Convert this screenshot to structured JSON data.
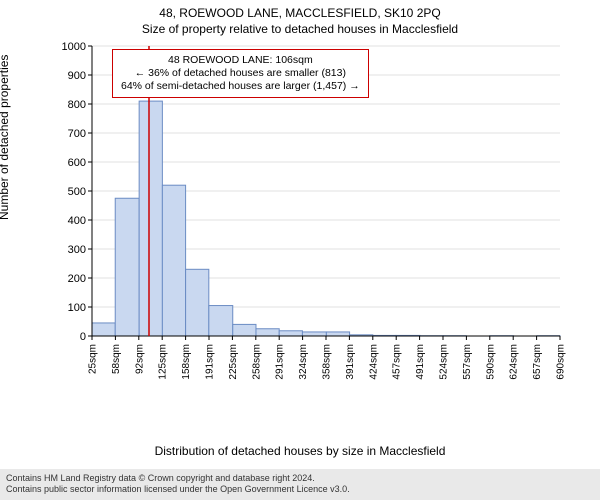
{
  "header_title": "48, ROEWOOD LANE, MACCLESFIELD, SK10 2PQ",
  "subtitle": "Size of property relative to detached houses in Macclesfield",
  "y_axis_label": "Number of detached properties",
  "x_axis_label": "Distribution of detached houses by size in Macclesfield",
  "info_box": {
    "line1": "48 ROEWOOD LANE: 106sqm",
    "line2": "← 36% of detached houses are smaller (813)",
    "line3": "64% of semi-detached houses are larger (1,457) →"
  },
  "footer": {
    "line1": "Contains HM Land Registry data © Crown copyright and database right 2024.",
    "line2": "Contains public sector information licensed under the Open Government Licence v3.0."
  },
  "chart": {
    "type": "histogram",
    "background_color": "#ffffff",
    "bar_fill": "#c9d8f0",
    "bar_stroke": "#6b8cc4",
    "axis_color": "#000000",
    "grid_color": "#e0e0e0",
    "reference_line_color": "#cc0000",
    "reference_x_value": 106,
    "ylim": [
      0,
      1000
    ],
    "ytick_step": 100,
    "title_fontsize": 12,
    "label_fontsize": 12,
    "tick_fontsize": 10,
    "x_tick_labels": [
      "25sqm",
      "58sqm",
      "92sqm",
      "125sqm",
      "158sqm",
      "191sqm",
      "225sqm",
      "258sqm",
      "291sqm",
      "324sqm",
      "358sqm",
      "391sqm",
      "424sqm",
      "457sqm",
      "491sqm",
      "524sqm",
      "557sqm",
      "590sqm",
      "624sqm",
      "657sqm",
      "690sqm"
    ],
    "bins": [
      {
        "x_start": 25,
        "x_end": 58,
        "count": 45
      },
      {
        "x_start": 58,
        "x_end": 92,
        "count": 475
      },
      {
        "x_start": 92,
        "x_end": 125,
        "count": 810
      },
      {
        "x_start": 125,
        "x_end": 158,
        "count": 520
      },
      {
        "x_start": 158,
        "x_end": 191,
        "count": 230
      },
      {
        "x_start": 191,
        "x_end": 225,
        "count": 105
      },
      {
        "x_start": 225,
        "x_end": 258,
        "count": 40
      },
      {
        "x_start": 258,
        "x_end": 291,
        "count": 25
      },
      {
        "x_start": 291,
        "x_end": 324,
        "count": 18
      },
      {
        "x_start": 324,
        "x_end": 358,
        "count": 14
      },
      {
        "x_start": 358,
        "x_end": 391,
        "count": 14
      },
      {
        "x_start": 391,
        "x_end": 424,
        "count": 4
      },
      {
        "x_start": 424,
        "x_end": 457,
        "count": 2
      },
      {
        "x_start": 457,
        "x_end": 491,
        "count": 2
      },
      {
        "x_start": 491,
        "x_end": 524,
        "count": 1
      },
      {
        "x_start": 524,
        "x_end": 557,
        "count": 1
      },
      {
        "x_start": 557,
        "x_end": 590,
        "count": 0
      },
      {
        "x_start": 590,
        "x_end": 624,
        "count": 1
      },
      {
        "x_start": 624,
        "x_end": 657,
        "count": 0
      },
      {
        "x_start": 657,
        "x_end": 690,
        "count": 1
      }
    ]
  }
}
